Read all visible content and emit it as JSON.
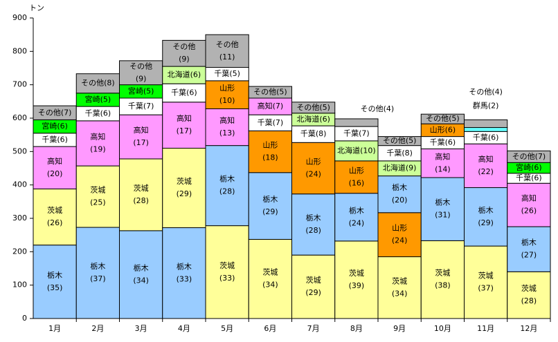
{
  "chart_data": {
    "type": "stacked-bar",
    "y_label": "トン",
    "ylim": [
      0,
      900
    ],
    "yticks": [
      0,
      100,
      200,
      300,
      400,
      500,
      600,
      700,
      800,
      900
    ],
    "categories": [
      "1月",
      "2月",
      "3月",
      "4月",
      "5月",
      "6月",
      "7月",
      "8月",
      "9月",
      "10月",
      "11月",
      "12月"
    ],
    "stacks": [
      [
        {
          "name": "栃木",
          "share": "(35)",
          "value": 220,
          "color": "#99ccff"
        },
        {
          "name": "茨城",
          "share": "(26)",
          "value": 168,
          "color": "#ffff99"
        },
        {
          "name": "高知",
          "share": "(20)",
          "value": 127,
          "color": "#ff99ff"
        },
        {
          "name": "千葉",
          "share": "(6)",
          "value": 40,
          "color": "#ffffff"
        },
        {
          "name": "宮崎",
          "share": "(6)",
          "value": 40,
          "color": "#00ff00"
        },
        {
          "name": "その他",
          "share": "(7)",
          "value": 42,
          "color": "#b2b2b2"
        }
      ],
      [
        {
          "name": "栃木",
          "share": "(37)",
          "value": 273,
          "color": "#99ccff"
        },
        {
          "name": "茨城",
          "share": "(25)",
          "value": 184,
          "color": "#ffff99"
        },
        {
          "name": "高知",
          "share": "(19)",
          "value": 135,
          "color": "#ff99ff"
        },
        {
          "name": "千葉",
          "share": "(6)",
          "value": 43,
          "color": "#ffffff"
        },
        {
          "name": "宮崎",
          "share": "(5)",
          "value": 40,
          "color": "#00ff00"
        },
        {
          "name": "その他",
          "share": "(8)",
          "value": 58,
          "color": "#b2b2b2"
        }
      ],
      [
        {
          "name": "栃木",
          "share": "(34)",
          "value": 263,
          "color": "#99ccff"
        },
        {
          "name": "茨城",
          "share": "(28)",
          "value": 215,
          "color": "#ffff99"
        },
        {
          "name": "高知",
          "share": "(17)",
          "value": 132,
          "color": "#ff99ff"
        },
        {
          "name": "千葉",
          "share": "(7)",
          "value": 50,
          "color": "#ffffff"
        },
        {
          "name": "宮崎",
          "share": "(5)",
          "value": 40,
          "color": "#00ff00"
        },
        {
          "name": "その他",
          "share": "(9)",
          "value": 72,
          "color": "#b2b2b2"
        }
      ],
      [
        {
          "name": "栃木",
          "share": "(33)",
          "value": 272,
          "color": "#99ccff"
        },
        {
          "name": "茨城",
          "share": "(29)",
          "value": 238,
          "color": "#ffff99"
        },
        {
          "name": "高知",
          "share": "(17)",
          "value": 138,
          "color": "#ff99ff"
        },
        {
          "name": "千葉",
          "share": "(6)",
          "value": 55,
          "color": "#ffffff"
        },
        {
          "name": "北海道",
          "share": "(6)",
          "value": 52,
          "color": "#ccff99"
        },
        {
          "name": "その他",
          "share": "(9)",
          "value": 78,
          "color": "#b2b2b2"
        }
      ],
      [
        {
          "name": "茨城",
          "share": "(33)",
          "value": 278,
          "color": "#ffff99"
        },
        {
          "name": "栃木",
          "share": "(28)",
          "value": 240,
          "color": "#99ccff"
        },
        {
          "name": "高知",
          "share": "(13)",
          "value": 110,
          "color": "#ff99ff"
        },
        {
          "name": "山形",
          "share": "(10)",
          "value": 84,
          "color": "#ff9900"
        },
        {
          "name": "千葉",
          "share": "(5)",
          "value": 40,
          "color": "#ffffff"
        },
        {
          "name": "その他",
          "share": "(11)",
          "value": 98,
          "color": "#b2b2b2"
        }
      ],
      [
        {
          "name": "茨城",
          "share": "(34)",
          "value": 237,
          "color": "#ffff99"
        },
        {
          "name": "栃木",
          "share": "(29)",
          "value": 200,
          "color": "#99ccff"
        },
        {
          "name": "山形",
          "share": "(18)",
          "value": 125,
          "color": "#ff9900"
        },
        {
          "name": "千葉",
          "share": "(7)",
          "value": 48,
          "color": "#ffffff"
        },
        {
          "name": "高知",
          "share": "(7)",
          "value": 50,
          "color": "#ff99ff"
        },
        {
          "name": "その他",
          "share": "(5)",
          "value": 35,
          "color": "#b2b2b2"
        }
      ],
      [
        {
          "name": "茨城",
          "share": "(29)",
          "value": 190,
          "color": "#ffff99"
        },
        {
          "name": "栃木",
          "share": "(28)",
          "value": 183,
          "color": "#99ccff"
        },
        {
          "name": "山形",
          "share": "(24)",
          "value": 154,
          "color": "#ff9900"
        },
        {
          "name": "千葉",
          "share": "(8)",
          "value": 50,
          "color": "#ffffff"
        },
        {
          "name": "北海道",
          "share": "(6)",
          "value": 38,
          "color": "#ccff99"
        },
        {
          "name": "その他",
          "share": "(5)",
          "value": 33,
          "color": "#b2b2b2"
        }
      ],
      [
        {
          "name": "茨城",
          "share": "(39)",
          "value": 232,
          "color": "#ffff99"
        },
        {
          "name": "栃木",
          "share": "(24)",
          "value": 143,
          "color": "#99ccff"
        },
        {
          "name": "山形",
          "share": "(16)",
          "value": 97,
          "color": "#ff9900"
        },
        {
          "name": "北海道",
          "share": "(10)",
          "value": 60,
          "color": "#ccff99"
        },
        {
          "name": "千葉",
          "share": "(7)",
          "value": 43,
          "color": "#ffffff"
        },
        {
          "name": "その他",
          "share": "(4)",
          "value": 23,
          "color": "#b2b2b2"
        }
      ],
      [
        {
          "name": "茨城",
          "share": "(34)",
          "value": 185,
          "color": "#ffff99"
        },
        {
          "name": "山形",
          "share": "(24)",
          "value": 132,
          "color": "#ff9900"
        },
        {
          "name": "栃木",
          "share": "(20)",
          "value": 110,
          "color": "#99ccff"
        },
        {
          "name": "北海道",
          "share": "(9)",
          "value": 45,
          "color": "#ccff99"
        },
        {
          "name": "千葉",
          "share": "(8)",
          "value": 46,
          "color": "#ffffff"
        },
        {
          "name": "その他",
          "share": "(5)",
          "value": 27,
          "color": "#b2b2b2"
        }
      ],
      [
        {
          "name": "茨城",
          "share": "(38)",
          "value": 233,
          "color": "#ffff99"
        },
        {
          "name": "栃木",
          "share": "(31)",
          "value": 189,
          "color": "#99ccff"
        },
        {
          "name": "高知",
          "share": "(14)",
          "value": 86,
          "color": "#ff99ff"
        },
        {
          "name": "千葉",
          "share": "(6)",
          "value": 37,
          "color": "#ffffff"
        },
        {
          "name": "山形",
          "share": "(6)",
          "value": 38,
          "color": "#ff9900"
        },
        {
          "name": "その他",
          "share": "(5)",
          "value": 29,
          "color": "#b2b2b2"
        }
      ],
      [
        {
          "name": "茨城",
          "share": "(37)",
          "value": 217,
          "color": "#ffff99"
        },
        {
          "name": "栃木",
          "share": "(29)",
          "value": 175,
          "color": "#99ccff"
        },
        {
          "name": "高知",
          "share": "(22)",
          "value": 131,
          "color": "#ff99ff"
        },
        {
          "name": "千葉",
          "share": "(6)",
          "value": 37,
          "color": "#ffffff"
        },
        {
          "name": "群馬",
          "share": "(2)",
          "value": 12,
          "color": "#66ffff"
        },
        {
          "name": "その他",
          "share": "(4)",
          "value": 23,
          "color": "#b2b2b2"
        }
      ],
      [
        {
          "name": "茨城",
          "share": "(28)",
          "value": 140,
          "color": "#ffff99"
        },
        {
          "name": "栃木",
          "share": "(27)",
          "value": 135,
          "color": "#99ccff"
        },
        {
          "name": "高知",
          "share": "(26)",
          "value": 130,
          "color": "#ff99ff"
        },
        {
          "name": "千葉",
          "share": "(6)",
          "value": 30,
          "color": "#ffffff"
        },
        {
          "name": "宮崎",
          "share": "(6)",
          "value": 32,
          "color": "#00ff00"
        },
        {
          "name": "その他",
          "share": "(7)",
          "value": 35,
          "color": "#b2b2b2"
        }
      ]
    ]
  }
}
